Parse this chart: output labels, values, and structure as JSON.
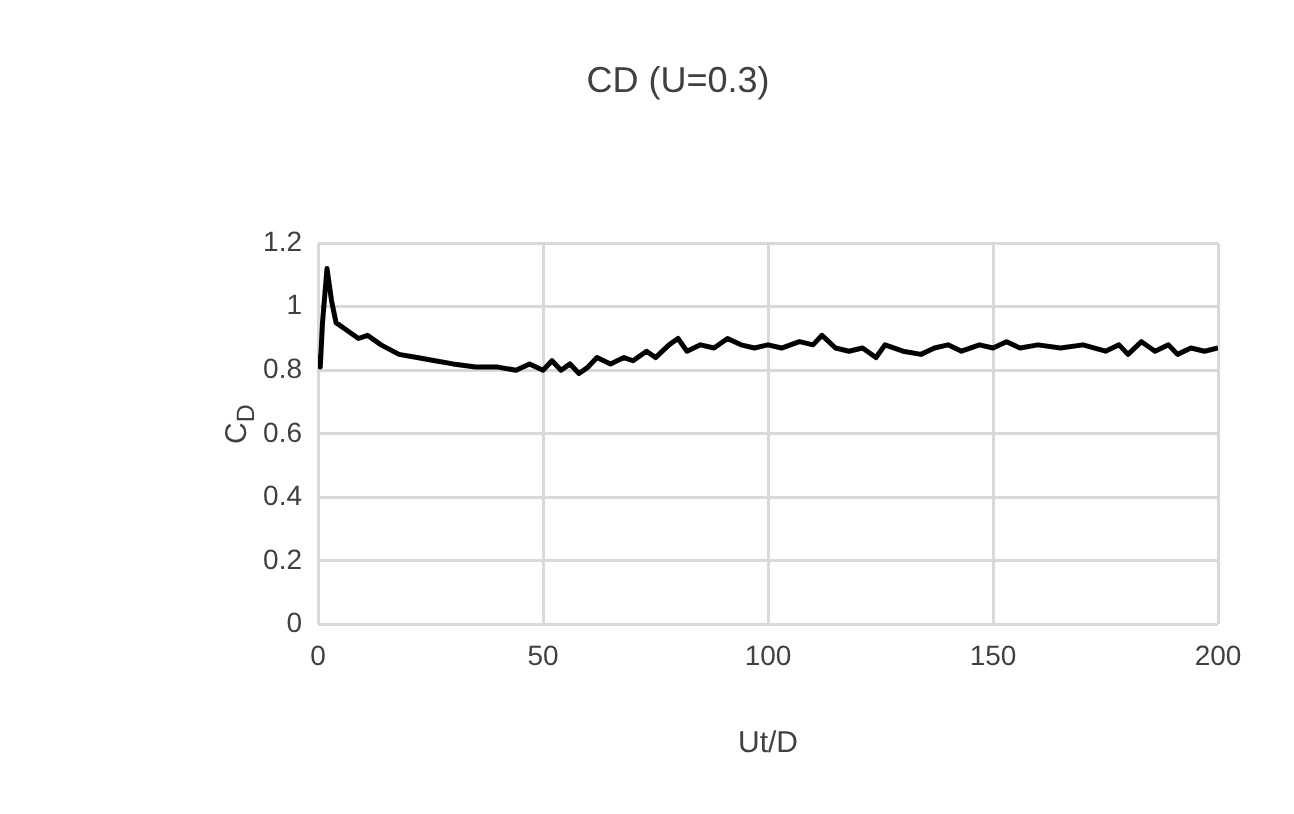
{
  "chart_data": {
    "type": "line",
    "title": "CD (U=0.3)",
    "xlabel": "Ut/D",
    "ylabel": "C$_{D}$",
    "x": [
      0,
      0.5,
      1,
      2,
      3,
      4,
      6,
      9,
      11,
      14,
      18,
      22,
      26,
      30,
      35,
      40,
      44,
      47,
      50,
      52,
      54,
      56,
      58,
      60,
      62,
      65,
      68,
      70,
      73,
      75,
      78,
      80,
      82,
      85,
      88,
      91,
      94,
      97,
      100,
      103,
      107,
      110,
      112,
      115,
      118,
      121,
      124,
      126,
      130,
      134,
      137,
      140,
      143,
      147,
      150,
      153,
      156,
      160,
      165,
      170,
      175,
      178,
      180,
      183,
      186,
      189,
      191,
      194,
      197,
      200
    ],
    "series": [
      {
        "color": "#000000",
        "values": [
          0.85,
          0.81,
          0.95,
          1.12,
          1.02,
          0.95,
          0.93,
          0.9,
          0.91,
          0.88,
          0.85,
          0.84,
          0.83,
          0.82,
          0.81,
          0.81,
          0.8,
          0.82,
          0.8,
          0.83,
          0.8,
          0.82,
          0.79,
          0.81,
          0.84,
          0.82,
          0.84,
          0.83,
          0.86,
          0.84,
          0.88,
          0.9,
          0.86,
          0.88,
          0.87,
          0.9,
          0.88,
          0.87,
          0.88,
          0.87,
          0.89,
          0.88,
          0.91,
          0.87,
          0.86,
          0.87,
          0.84,
          0.88,
          0.86,
          0.85,
          0.87,
          0.88,
          0.86,
          0.88,
          0.87,
          0.89,
          0.87,
          0.88,
          0.87,
          0.88,
          0.86,
          0.88,
          0.85,
          0.89,
          0.86,
          0.88,
          0.85,
          0.87,
          0.86,
          0.87
        ]
      }
    ],
    "xlim": [
      0,
      200
    ],
    "xticks": [
      0,
      50,
      100,
      150,
      200
    ],
    "ylim": [
      0,
      1.2
    ],
    "yticks": [
      0,
      0.2,
      0.4,
      0.6,
      0.8,
      1,
      1.2
    ],
    "grid": true,
    "legend": false,
    "marker": "none",
    "line_style": "solid"
  }
}
